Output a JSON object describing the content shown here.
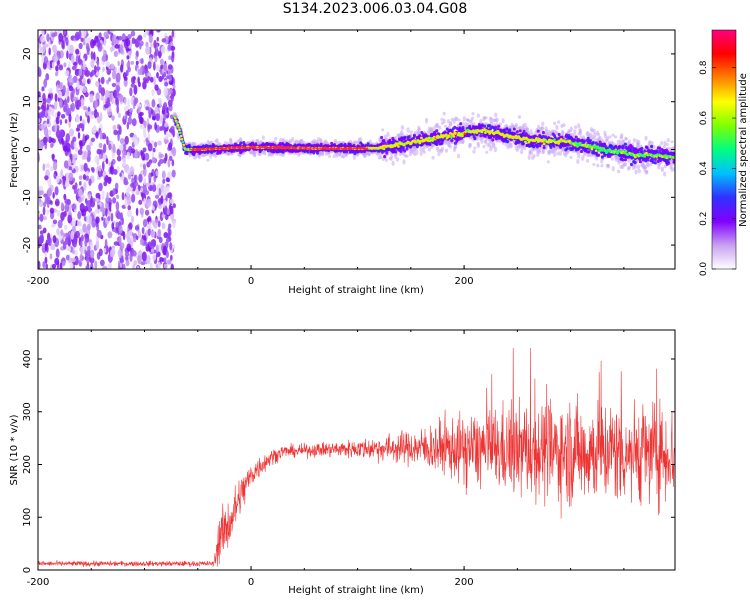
{
  "figure": {
    "title": "S134.2023.006.03.04.G08"
  },
  "chart_data": [
    {
      "type": "heatmap",
      "xlabel": "Height of straight line (km)",
      "ylabel": "Frequency (Hz)",
      "xlim": [
        -200,
        398
      ],
      "ylim": [
        -25,
        25
      ],
      "x_ticks": [
        -200,
        0,
        200
      ],
      "x_tick_labels": [
        "-200",
        "0",
        "200"
      ],
      "y_ticks": [
        -20,
        -10,
        0,
        10,
        20
      ],
      "y_tick_labels": [
        "-20",
        "-10",
        "0",
        "10",
        "20"
      ],
      "colorbar": {
        "label": "Normalized spectral amplitude",
        "range": [
          0,
          0.95
        ],
        "ticks": [
          0.0,
          0.2,
          0.4,
          0.6,
          0.8
        ],
        "tick_labels": [
          "0.0",
          "0.2",
          "0.4",
          "0.6",
          "0.8"
        ],
        "colors": [
          "#ffffff",
          "#c8a0f0",
          "#8000ff",
          "#3030ff",
          "#00c0ff",
          "#00ff80",
          "#80ff00",
          "#ffff00",
          "#ff8000",
          "#ff0000",
          "#ff0080"
        ]
      },
      "noise_region_x": [
        -200,
        -72
      ],
      "trace": {
        "x": [
          -72,
          -67,
          -62,
          -58,
          -50,
          -30,
          0,
          50,
          100,
          120,
          150,
          175,
          200,
          215,
          230,
          260,
          300,
          330,
          360,
          398
        ],
        "y": [
          7,
          4,
          0,
          0,
          0,
          0.2,
          0.5,
          0.3,
          0.2,
          0.3,
          1.5,
          2.5,
          3.5,
          4,
          3.5,
          2,
          1.5,
          0,
          -1,
          -1.5
        ]
      }
    },
    {
      "type": "line",
      "xlabel": "Height of straight line (km)",
      "ylabel": "SNR (10 * v/v)",
      "xlim": [
        -200,
        398
      ],
      "ylim": [
        0,
        455
      ],
      "x_ticks": [
        -200,
        0,
        200
      ],
      "x_tick_labels": [
        "-200",
        "0",
        "200"
      ],
      "y_ticks": [
        0,
        100,
        200,
        300,
        400
      ],
      "y_tick_labels": [
        "0",
        "100",
        "200",
        "300",
        "400"
      ],
      "series": [
        {
          "color": "#ee3333",
          "envelope_x": [
            -200,
            -35,
            -30,
            -20,
            -10,
            0,
            10,
            20,
            30,
            40,
            60,
            100,
            150,
            200,
            250,
            300,
            350,
            398
          ],
          "mean": [
            12,
            12,
            60,
            90,
            140,
            180,
            200,
            215,
            225,
            225,
            228,
            230,
            232,
            230,
            228,
            225,
            225,
            220
          ],
          "spread": [
            6,
            6,
            60,
            60,
            50,
            30,
            25,
            18,
            15,
            14,
            16,
            22,
            40,
            80,
            110,
            120,
            120,
            110
          ]
        }
      ]
    }
  ]
}
